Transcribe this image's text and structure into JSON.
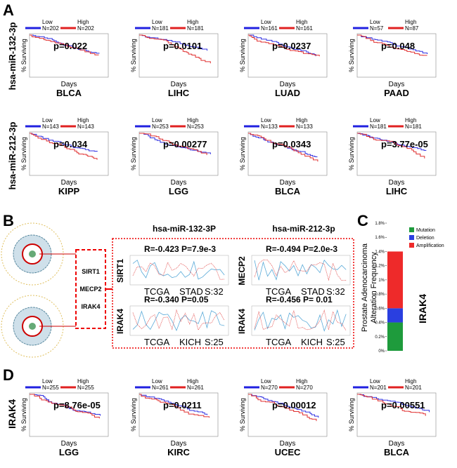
{
  "panel_a": {
    "label": "A",
    "rows": [
      {
        "row_label": "hsa-miR-132-3p",
        "plots": [
          {
            "low": "Low",
            "low_n": "N=202",
            "high": "High",
            "high_n": "N=202",
            "p": "p=0.022",
            "ylabel": "% Surviving",
            "xlabel": "Days",
            "cancer": "BLCA"
          },
          {
            "low": "Low",
            "low_n": "N=181",
            "high": "High",
            "high_n": "N=181",
            "p": "p=0.0101",
            "ylabel": "% Surviving",
            "xlabel": "Days",
            "cancer": "LIHC"
          },
          {
            "low": "Low",
            "low_n": "N=161",
            "high": "High",
            "high_n": "N=161",
            "p": "p=0.0237",
            "ylabel": "% Surviving",
            "xlabel": "Days",
            "cancer": "LUAD"
          },
          {
            "low": "Low",
            "low_n": "N=57",
            "high": "High",
            "high_n": "N=87",
            "p": "p=0.048",
            "ylabel": "% Surviving",
            "xlabel": "Days",
            "cancer": "PAAD"
          }
        ]
      },
      {
        "row_label": "hsa-miR-212-3p",
        "plots": [
          {
            "low": "Low",
            "low_n": "N=143",
            "high": "High",
            "high_n": "N=143",
            "p": "p=0.034",
            "ylabel": "% Surviving",
            "xlabel": "Days",
            "cancer": "KIPP"
          },
          {
            "low": "Low",
            "low_n": "N=253",
            "high": "High",
            "high_n": "N=253",
            "p": "p=0.00277",
            "ylabel": "% Surviving",
            "xlabel": "Days",
            "cancer": "LGG"
          },
          {
            "low": "Low",
            "low_n": "N=133",
            "high": "High",
            "high_n": "N=133",
            "p": "p=0.0343",
            "ylabel": "% Surviving",
            "xlabel": "Days",
            "cancer": "BLCA"
          },
          {
            "low": "Low",
            "low_n": "N=181",
            "high": "High",
            "high_n": "N=181",
            "p": "p=3.77e-05",
            "ylabel": "% Surviving",
            "xlabel": "Days",
            "cancer": "LIHC"
          }
        ]
      }
    ]
  },
  "panel_b": {
    "label": "B",
    "genes": [
      "SIRT1",
      "MECP2",
      "IRAK4"
    ],
    "column_titles": [
      "hsa-miR-132-3P",
      "hsa-miR-212-3p"
    ],
    "plots": [
      {
        "gene": "SIRT1",
        "stats": "R=-0.423   P=7.9e-3",
        "source": "TCGA",
        "cancer": "STAD",
        "samples": "S:32"
      },
      {
        "gene": "MECP2",
        "stats": "R=-0.494   P=2.0e-3",
        "source": "TCGA",
        "cancer": "STAD",
        "samples": "S:32"
      },
      {
        "gene": "IRAK4",
        "stats": "R=-0.340   P=0.05",
        "source": "TCGA",
        "cancer": "KICH",
        "samples": "S:25"
      },
      {
        "gene": "IRAK4",
        "stats": "R=-0.456   P= 0.01",
        "source": "TCGA",
        "cancer": "KICH",
        "samples": "S:25"
      }
    ]
  },
  "panel_c": {
    "label": "C",
    "ylabel": [
      "Prostate Adenocarcinoma",
      "Alteration Frequency"
    ],
    "gene": "IRAK4",
    "ylim": [
      0,
      1.8
    ],
    "yticks": [
      {
        "value": 0,
        "label": "0%"
      },
      {
        "value": 0.2,
        "label": "0.2%"
      },
      {
        "value": 0.4,
        "label": "0.4%"
      },
      {
        "value": 0.6,
        "label": "0.6%"
      },
      {
        "value": 0.8,
        "label": "0.8%"
      },
      {
        "value": 1,
        "label": "1%"
      },
      {
        "value": 1.2,
        "label": "1.2%"
      },
      {
        "value": 1.4,
        "label": "1.4%"
      },
      {
        "value": 1.6,
        "label": "1.6%"
      },
      {
        "value": 1.8,
        "label": "1.8%"
      }
    ],
    "series": [
      {
        "name": "Mutation",
        "color": "#1e9b3c",
        "value": 0.4
      },
      {
        "name": "Deletion",
        "color": "#2a3fe0",
        "value": 0.2
      },
      {
        "name": "Amplification",
        "color": "#ee2a2a",
        "value": 0.8
      }
    ]
  },
  "panel_d": {
    "label": "D",
    "row_label": "IRAK4",
    "plots": [
      {
        "low": "Low",
        "low_n": "N=255",
        "high": "High",
        "high_n": "N=255",
        "p": "p=8.76e-05",
        "ylabel": "% Surviving",
        "xlabel": "Days",
        "cancer": "LGG"
      },
      {
        "low": "Low",
        "low_n": "N=261",
        "high": "High",
        "high_n": "N=261",
        "p": "p=0.0211",
        "ylabel": "% Surviving",
        "xlabel": "Days",
        "cancer": "KIRC"
      },
      {
        "low": "Low",
        "low_n": "N=270",
        "high": "High",
        "high_n": "N=270",
        "p": "p=0.00012",
        "ylabel": "% Surviving",
        "xlabel": "Days",
        "cancer": "UCEC"
      },
      {
        "low": "Low",
        "low_n": "N=201",
        "high": "High",
        "high_n": "N=201",
        "p": "p=0.00551",
        "ylabel": "% Surviving",
        "xlabel": "Days",
        "cancer": "BLCA"
      }
    ]
  }
}
